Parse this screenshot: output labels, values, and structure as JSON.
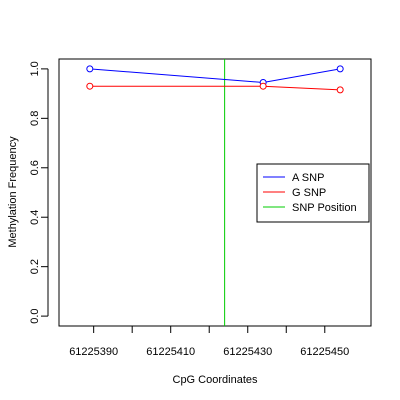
{
  "chart_data": {
    "type": "line",
    "title": "",
    "xlabel": "CpG Coordinates",
    "ylabel": "Methylation Frequency",
    "xlim": [
      61225381,
      61225462
    ],
    "ylim": [
      -0.04,
      1.04
    ],
    "x_ticks": [
      61225390,
      61225410,
      61225430,
      61225450
    ],
    "y_ticks": [
      0.0,
      0.2,
      0.4,
      0.6,
      0.8,
      1.0
    ],
    "x_tick_labels": [
      "61225390",
      "61225410",
      "61225430",
      "61225450"
    ],
    "y_tick_labels": [
      "0.0",
      "0.2",
      "0.4",
      "0.6",
      "0.8",
      "1.0"
    ],
    "grid": false,
    "legend_position": "right",
    "series": [
      {
        "name": "A SNP",
        "color": "#0000ff",
        "x": [
          61225389,
          61225434,
          61225454
        ],
        "y": [
          1.0,
          0.945,
          1.0
        ]
      },
      {
        "name": "G SNP",
        "color": "#ff0000",
        "x": [
          61225389,
          61225434,
          61225454
        ],
        "y": [
          0.93,
          0.93,
          0.915
        ]
      }
    ],
    "snp_position": {
      "name": "SNP Position",
      "color": "#00cc00",
      "x": 61225424
    },
    "legend": [
      "A SNP",
      "G SNP",
      "SNP Position"
    ]
  }
}
